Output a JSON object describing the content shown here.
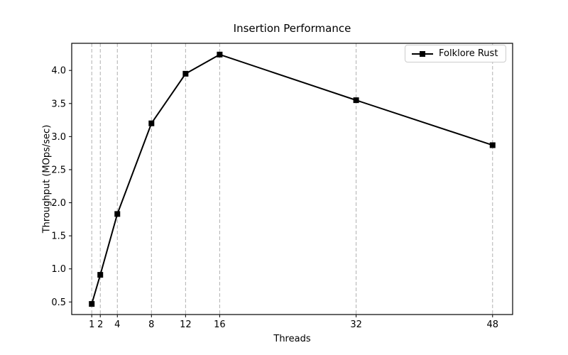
{
  "chart_data": {
    "type": "line",
    "title": "Insertion Performance",
    "xlabel": "Threads",
    "ylabel": "Throughput (MOps/sec)",
    "x": [
      1,
      2,
      4,
      8,
      12,
      16,
      32,
      48
    ],
    "series": [
      {
        "name": "Folklore Rust",
        "values": [
          0.47,
          0.91,
          1.83,
          3.2,
          3.95,
          4.24,
          3.55,
          2.87
        ],
        "color": "#000000",
        "marker": "square"
      }
    ],
    "x_ticks": [
      1,
      2,
      4,
      8,
      12,
      16,
      32,
      48
    ],
    "x_tick_labels": [
      "1",
      "2",
      "4",
      "8",
      "12",
      "16",
      "32",
      "48"
    ],
    "y_ticks": [
      0.5,
      1.0,
      1.5,
      2.0,
      2.5,
      3.0,
      3.5,
      4.0
    ],
    "y_tick_labels": [
      "0.5",
      "1.0",
      "1.5",
      "2.0",
      "2.5",
      "3.0",
      "3.5",
      "4.0"
    ],
    "xlim": [
      -1.35,
      50.35
    ],
    "ylim": [
      0.31,
      4.41
    ],
    "grid": "vertical-dashed-at-x-ticks",
    "grid_color": "#b0b0b0",
    "axis_color": "#000000",
    "legend": {
      "position": "upper-right",
      "entries": [
        "Folklore Rust"
      ]
    }
  }
}
